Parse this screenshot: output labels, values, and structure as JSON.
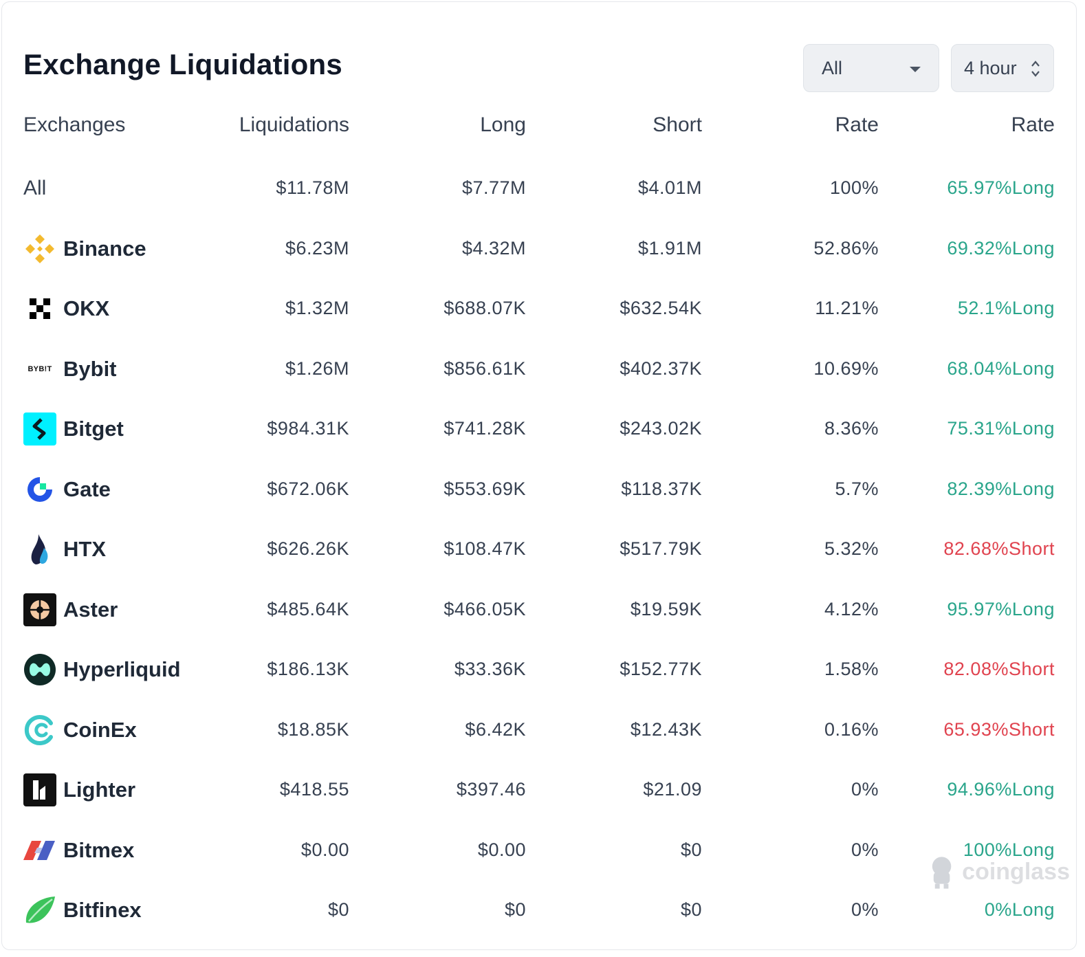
{
  "title": "Exchange Liquidations",
  "filters": {
    "exchange": "All",
    "period": "4 hour"
  },
  "headers": {
    "exchanges": "Exchanges",
    "liquidations": "Liquidations",
    "long": "Long",
    "short": "Short",
    "rate": "Rate",
    "rate2": "Rate"
  },
  "rows": [
    {
      "name": "All",
      "liquidations": "$11.78M",
      "long": "$7.77M",
      "short": "$4.01M",
      "rate": "100%",
      "side_rate": "65.97%Long",
      "side": "long"
    },
    {
      "name": "Binance",
      "liquidations": "$6.23M",
      "long": "$4.32M",
      "short": "$1.91M",
      "rate": "52.86%",
      "side_rate": "69.32%Long",
      "side": "long"
    },
    {
      "name": "OKX",
      "liquidations": "$1.32M",
      "long": "$688.07K",
      "short": "$632.54K",
      "rate": "11.21%",
      "side_rate": "52.1%Long",
      "side": "long"
    },
    {
      "name": "Bybit",
      "liquidations": "$1.26M",
      "long": "$856.61K",
      "short": "$402.37K",
      "rate": "10.69%",
      "side_rate": "68.04%Long",
      "side": "long"
    },
    {
      "name": "Bitget",
      "liquidations": "$984.31K",
      "long": "$741.28K",
      "short": "$243.02K",
      "rate": "8.36%",
      "side_rate": "75.31%Long",
      "side": "long"
    },
    {
      "name": "Gate",
      "liquidations": "$672.06K",
      "long": "$553.69K",
      "short": "$118.37K",
      "rate": "5.7%",
      "side_rate": "82.39%Long",
      "side": "long"
    },
    {
      "name": "HTX",
      "liquidations": "$626.26K",
      "long": "$108.47K",
      "short": "$517.79K",
      "rate": "5.32%",
      "side_rate": "82.68%Short",
      "side": "short"
    },
    {
      "name": "Aster",
      "liquidations": "$485.64K",
      "long": "$466.05K",
      "short": "$19.59K",
      "rate": "4.12%",
      "side_rate": "95.97%Long",
      "side": "long"
    },
    {
      "name": "Hyperliquid",
      "liquidations": "$186.13K",
      "long": "$33.36K",
      "short": "$152.77K",
      "rate": "1.58%",
      "side_rate": "82.08%Short",
      "side": "short"
    },
    {
      "name": "CoinEx",
      "liquidations": "$18.85K",
      "long": "$6.42K",
      "short": "$12.43K",
      "rate": "0.16%",
      "side_rate": "65.93%Short",
      "side": "short"
    },
    {
      "name": "Lighter",
      "liquidations": "$418.55",
      "long": "$397.46",
      "short": "$21.09",
      "rate": "0%",
      "side_rate": "94.96%Long",
      "side": "long"
    },
    {
      "name": "Bitmex",
      "liquidations": "$0.00",
      "long": "$0.00",
      "short": "$0",
      "rate": "0%",
      "side_rate": "100%Long",
      "side": "long"
    },
    {
      "name": "Bitfinex",
      "liquidations": "$0",
      "long": "$0",
      "short": "$0",
      "rate": "0%",
      "side_rate": "0%Long",
      "side": "long"
    }
  ],
  "logo_text": {
    "bybit": "BYB!T"
  },
  "watermark": "coinglass",
  "colors": {
    "long": "#2aa58b",
    "short": "#e0434f",
    "binance": "#F3BA2F",
    "bitget": "#00F0FF",
    "gate": "#2354E6",
    "coinex": "#3CC8C8"
  }
}
